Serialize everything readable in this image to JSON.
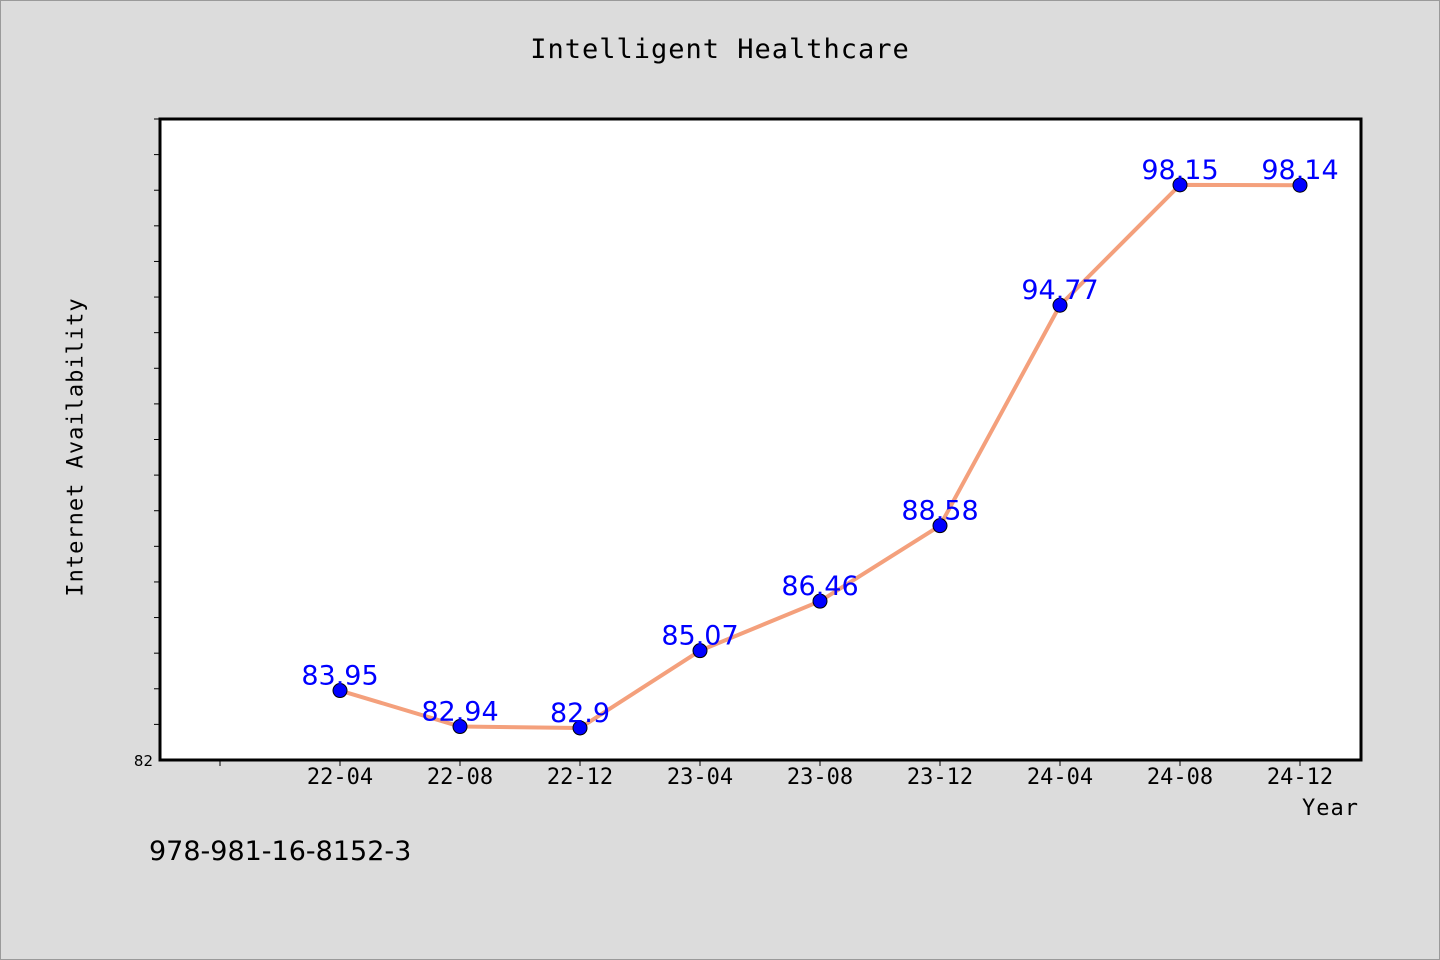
{
  "chart_data": {
    "type": "line",
    "title": "Intelligent Healthcare",
    "xlabel": "Year",
    "ylabel": "Internet Availability",
    "categories": [
      "22-04",
      "22-08",
      "22-12",
      "23-04",
      "23-08",
      "23-12",
      "24-04",
      "24-08",
      "24-12"
    ],
    "values": [
      83.95,
      82.94,
      82.9,
      85.07,
      86.46,
      88.58,
      94.77,
      98.15,
      98.14
    ],
    "value_labels": [
      "83.95",
      "82.94",
      "82.9",
      "85.07",
      "86.46",
      "88.58",
      "94.77",
      "98.15",
      "98.14"
    ],
    "ylim": [
      82,
      100
    ],
    "y_tick_label": "82",
    "grid": false,
    "line_color": "#f4a07c",
    "marker_color": "#0000ff",
    "label_color": "#0000ff"
  },
  "footer": {
    "isbn": "978-981-16-8152-3"
  }
}
